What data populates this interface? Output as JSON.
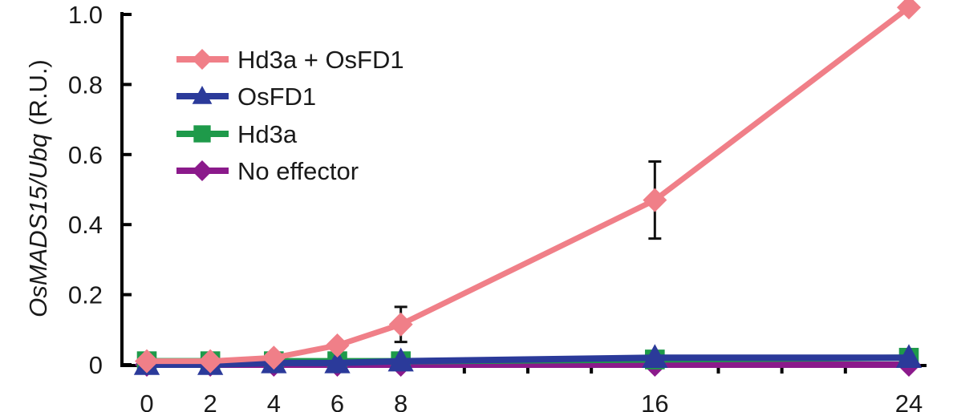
{
  "chart_data": {
    "type": "line",
    "ylabel_italic": "OsMADS15/Ubq",
    "ylabel_unit": "(R.U.)",
    "x": [
      0,
      2,
      4,
      6,
      8,
      16,
      24
    ],
    "xticks": [
      "0",
      "2",
      "4",
      "6",
      "8",
      "16",
      "24"
    ],
    "xlim": [
      0,
      24
    ],
    "ylim": [
      0,
      1.0
    ],
    "yticks": [
      "0",
      "0.2",
      "0.4",
      "0.6",
      "0.8",
      "1.0"
    ],
    "ytick_values": [
      0,
      0.2,
      0.4,
      0.6,
      0.8,
      1.0
    ],
    "legend_position": "top-left",
    "grid": false,
    "series": [
      {
        "name": "No effector",
        "color": "#8b1a8b",
        "marker": "diamond",
        "values": [
          0.0,
          0.0,
          0.0,
          0.0,
          0.0,
          0.0,
          0.0
        ]
      },
      {
        "name": "Hd3a",
        "color": "#1e9a4a",
        "marker": "square",
        "values": [
          0.01,
          0.01,
          0.01,
          0.01,
          0.01,
          0.015,
          0.02
        ]
      },
      {
        "name": "OsFD1",
        "color": "#2b3a9a",
        "marker": "triangle",
        "values": [
          0.0,
          0.0,
          0.005,
          0.005,
          0.01,
          0.02,
          0.02
        ]
      },
      {
        "name": "Hd3a + OsFD1",
        "color": "#f07f88",
        "marker": "diamond",
        "values": [
          0.01,
          0.01,
          0.02,
          0.055,
          0.115,
          0.47,
          1.02
        ],
        "errors": [
          0,
          0,
          0,
          0,
          0.05,
          0.11,
          0.01
        ]
      }
    ],
    "legend_order": [
      "Hd3a + OsFD1",
      "OsFD1",
      "Hd3a",
      "No effector"
    ]
  }
}
